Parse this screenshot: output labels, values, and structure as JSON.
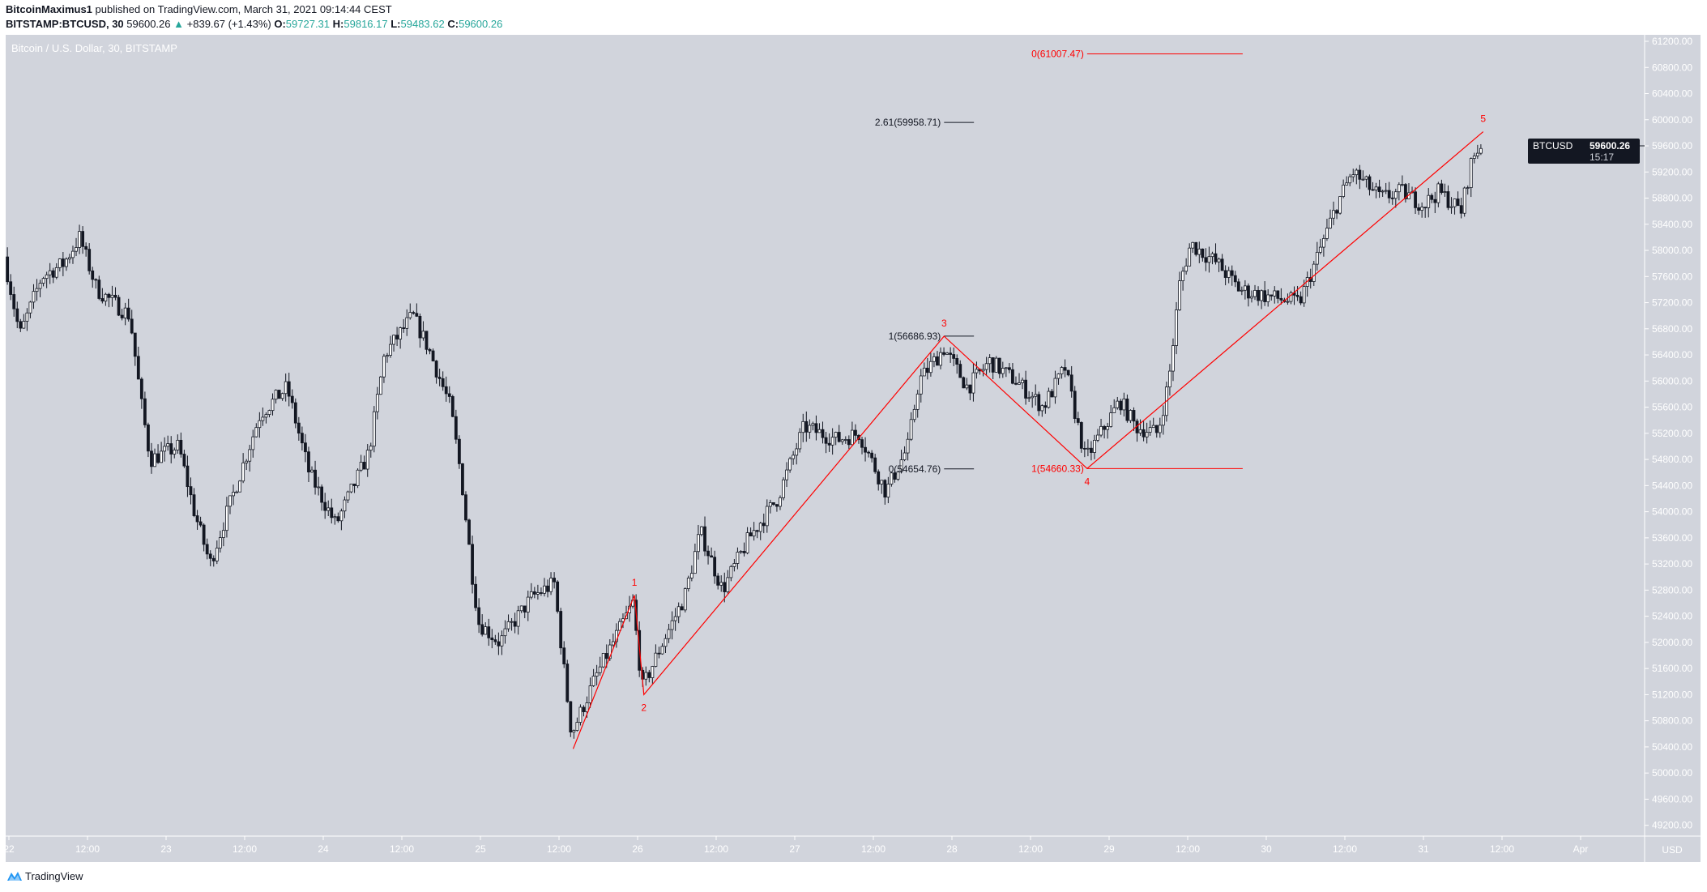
{
  "header": {
    "author": "BitcoinMaximus1",
    "published": "published on TradingView.com, March 31, 2021 09:14:44 CEST",
    "symbol": "BITSTAMP:BTCUSD, 30",
    "last": "59600.26",
    "change": "+839.67 (+1.43%)",
    "o_label": "O:",
    "o": "59727.31",
    "h_label": "H:",
    "h": "59816.17",
    "l_label": "L:",
    "l": "59483.62",
    "c_label": "C:",
    "c": "59600.26",
    "up_arrow_icon": "triangle-up"
  },
  "footer": {
    "brand": "TradingView",
    "logo_icon": "tradingview-logo"
  },
  "colors": {
    "background": "#d1d4dc",
    "up_body": "#ffffff",
    "down_body": "#131722",
    "wave": "#ff0000",
    "teal": "#26a69a"
  },
  "chart_data": {
    "type": "candlestick",
    "title": "Bitcoin / U.S. Dollar, 30, BITSTAMP",
    "currency": "USD",
    "ylim": [
      49000,
      61300
    ],
    "y_ticks": [
      49200,
      49600,
      50000,
      50400,
      50800,
      51200,
      51600,
      52000,
      52400,
      52800,
      53200,
      53600,
      54000,
      54400,
      54800,
      55200,
      55600,
      56000,
      56400,
      56800,
      57200,
      57600,
      58000,
      58400,
      58800,
      59200,
      59600,
      60000,
      60400,
      60800,
      61200
    ],
    "x_ticks": [
      {
        "label": "22",
        "day": 0
      },
      {
        "label": "12:00",
        "day": 0.5
      },
      {
        "label": "23",
        "day": 1
      },
      {
        "label": "12:00",
        "day": 1.5
      },
      {
        "label": "24",
        "day": 2
      },
      {
        "label": "12:00",
        "day": 2.5
      },
      {
        "label": "25",
        "day": 3
      },
      {
        "label": "12:00",
        "day": 3.5
      },
      {
        "label": "26",
        "day": 4
      },
      {
        "label": "12:00",
        "day": 4.5
      },
      {
        "label": "27",
        "day": 5
      },
      {
        "label": "12:00",
        "day": 5.5
      },
      {
        "label": "28",
        "day": 6
      },
      {
        "label": "12:00",
        "day": 6.5
      },
      {
        "label": "29",
        "day": 7
      },
      {
        "label": "12:00",
        "day": 7.5
      },
      {
        "label": "30",
        "day": 8
      },
      {
        "label": "12:00",
        "day": 8.5
      },
      {
        "label": "31",
        "day": 9
      },
      {
        "label": "12:00",
        "day": 9.5
      },
      {
        "label": "Apr",
        "day": 10
      }
    ],
    "x_unit": "days from March 22, 2021 00:00",
    "price_path": [
      [
        -0.02,
        57900
      ],
      [
        0.08,
        56700
      ],
      [
        0.22,
        57600
      ],
      [
        0.36,
        57800
      ],
      [
        0.46,
        58200
      ],
      [
        0.57,
        57400
      ],
      [
        0.78,
        57000
      ],
      [
        0.85,
        55700
      ],
      [
        0.91,
        54800
      ],
      [
        1.09,
        55000
      ],
      [
        1.19,
        54000
      ],
      [
        1.29,
        53200
      ],
      [
        1.4,
        54000
      ],
      [
        1.61,
        55500
      ],
      [
        1.78,
        55900
      ],
      [
        1.92,
        54600
      ],
      [
        2.09,
        53800
      ],
      [
        2.3,
        54900
      ],
      [
        2.4,
        56400
      ],
      [
        2.58,
        57000
      ],
      [
        2.68,
        56500
      ],
      [
        2.82,
        55600
      ],
      [
        2.89,
        54500
      ],
      [
        2.96,
        53000
      ],
      [
        3.0,
        52300
      ],
      [
        3.13,
        52000
      ],
      [
        3.34,
        52700
      ],
      [
        3.48,
        52900
      ],
      [
        3.56,
        51200
      ],
      [
        3.59,
        50600
      ],
      [
        3.75,
        51500
      ],
      [
        3.98,
        52600
      ],
      [
        4.04,
        51300
      ],
      [
        4.17,
        52000
      ],
      [
        4.31,
        52700
      ],
      [
        4.41,
        53700
      ],
      [
        4.55,
        52800
      ],
      [
        4.72,
        53600
      ],
      [
        4.9,
        54200
      ],
      [
        5.07,
        55300
      ],
      [
        5.28,
        55100
      ],
      [
        5.42,
        55200
      ],
      [
        5.59,
        54300
      ],
      [
        5.73,
        55000
      ],
      [
        5.8,
        56000
      ],
      [
        5.96,
        56500
      ],
      [
        6.11,
        55900
      ],
      [
        6.25,
        56300
      ],
      [
        6.42,
        56000
      ],
      [
        6.59,
        55600
      ],
      [
        6.73,
        56200
      ],
      [
        6.86,
        54800
      ],
      [
        7.08,
        55700
      ],
      [
        7.18,
        55300
      ],
      [
        7.32,
        55200
      ],
      [
        7.39,
        56000
      ],
      [
        7.46,
        57500
      ],
      [
        7.53,
        58100
      ],
      [
        7.7,
        57800
      ],
      [
        7.84,
        57400
      ],
      [
        8.01,
        57300
      ],
      [
        8.22,
        57200
      ],
      [
        8.32,
        57800
      ],
      [
        8.46,
        58700
      ],
      [
        8.56,
        59200
      ],
      [
        8.74,
        58800
      ],
      [
        8.87,
        58900
      ],
      [
        9.01,
        58700
      ],
      [
        9.11,
        58900
      ],
      [
        9.25,
        58600
      ],
      [
        9.32,
        59400
      ],
      [
        9.37,
        59600
      ]
    ],
    "last_price": {
      "symbol": "BTCUSD",
      "price": "59600.26",
      "countdown": "15:17",
      "value": 59600.26
    },
    "elliott_wave": [
      {
        "label": "",
        "day": 3.59,
        "price": 50370
      },
      {
        "label": "1",
        "day": 3.98,
        "price": 52720
      },
      {
        "label": "2",
        "day": 4.04,
        "price": 51200
      },
      {
        "label": "3",
        "day": 5.95,
        "price": 56686.93
      },
      {
        "label": "4",
        "day": 6.86,
        "price": 54660.33
      },
      {
        "label": "5",
        "day": 9.38,
        "price": 59816.17
      }
    ],
    "fib_levels": [
      {
        "text": "0(61007.47)",
        "price": 61007.47,
        "color": "#ff0000",
        "from_day": 6.86,
        "to_day": 7.85
      },
      {
        "text": "2.61(59958.71)",
        "price": 59958.71,
        "color": "#131722",
        "from_day": 5.95,
        "to_day": 6.14
      },
      {
        "text": "1(56686.93)",
        "price": 56686.93,
        "color": "#131722",
        "from_day": 5.95,
        "to_day": 6.14
      },
      {
        "text": "0(54654.76)",
        "price": 54654.76,
        "color": "#131722",
        "from_day": 5.95,
        "to_day": 6.14
      },
      {
        "text": "1(54660.33)",
        "price": 54660.33,
        "color": "#ff0000",
        "from_day": 6.86,
        "to_day": 7.85
      }
    ]
  }
}
